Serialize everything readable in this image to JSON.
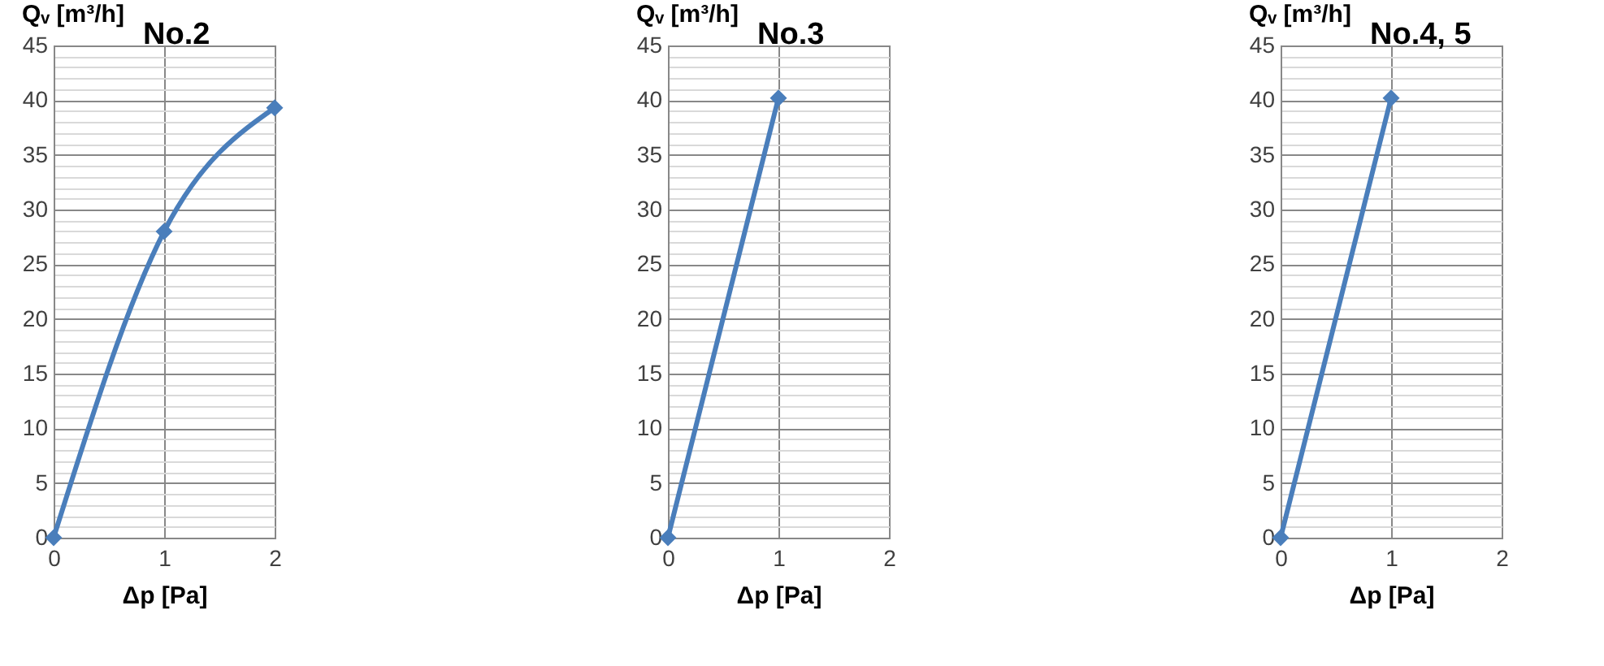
{
  "chart_data": [
    {
      "type": "line",
      "title": "No.2",
      "ylabel": "Qᵥ [m³/h]",
      "xlabel": "Δp [Pa]",
      "x": [
        0,
        1,
        2
      ],
      "series": [
        {
          "color": "#4a7ebb",
          "values": [
            0,
            28,
            39.3
          ]
        }
      ],
      "xlim": [
        0,
        2
      ],
      "xticks": [
        0,
        1,
        2
      ],
      "ylim": [
        0,
        45
      ],
      "yticks": [
        0,
        {
          "value": 1,
          "label": null
        },
        {
          "value": 2,
          "label": null
        },
        {
          "value": 3,
          "label": null
        },
        {
          "value": 4,
          "label": null
        },
        5,
        {
          "value": 6,
          "label": null
        },
        {
          "value": 7,
          "label": null
        },
        {
          "value": 8,
          "label": null
        },
        {
          "value": 9,
          "label": null
        },
        10,
        {
          "value": 11,
          "label": null
        },
        {
          "value": 12,
          "label": null
        },
        {
          "value": 13,
          "label": null
        },
        {
          "value": 14,
          "label": null
        },
        15,
        {
          "value": 16,
          "label": null
        },
        {
          "value": 17,
          "label": null
        },
        {
          "value": 18,
          "label": null
        },
        {
          "value": 19,
          "label": null
        },
        20,
        {
          "value": 21,
          "label": null
        },
        {
          "value": 22,
          "label": null
        },
        {
          "value": 23,
          "label": null
        },
        {
          "value": 24,
          "label": null
        },
        25,
        {
          "value": 26,
          "label": null
        },
        {
          "value": 27,
          "label": null
        },
        {
          "value": 28,
          "label": null
        },
        {
          "value": 29,
          "label": null
        },
        30,
        {
          "value": 31,
          "label": null
        },
        {
          "value": 32,
          "label": null
        },
        {
          "value": 33,
          "label": null
        },
        {
          "value": 34,
          "label": null
        },
        35,
        {
          "value": 36,
          "label": null
        },
        {
          "value": 37,
          "label": null
        },
        {
          "value": 38,
          "label": null
        },
        {
          "value": 39,
          "label": null
        },
        40,
        {
          "value": 41,
          "label": null
        },
        {
          "value": 42,
          "label": null
        },
        {
          "value": 43,
          "label": null
        },
        {
          "value": 44,
          "label": null
        },
        45
      ],
      "grid": true,
      "marker": "diamond",
      "line_style": "solid"
    },
    {
      "type": "line",
      "title": "No.3",
      "ylabel": "Qᵥ [m³/h]",
      "xlabel": "Δp [Pa]",
      "x": [
        0,
        1
      ],
      "series": [
        {
          "color": "#4a7ebb",
          "values": [
            0,
            40.2
          ]
        }
      ],
      "xlim": [
        0,
        2
      ],
      "xticks": [
        0,
        1,
        2
      ],
      "ylim": [
        0,
        45
      ],
      "yticks": [
        0,
        {
          "value": 1,
          "label": null
        },
        {
          "value": 2,
          "label": null
        },
        {
          "value": 3,
          "label": null
        },
        {
          "value": 4,
          "label": null
        },
        5,
        {
          "value": 6,
          "label": null
        },
        {
          "value": 7,
          "label": null
        },
        {
          "value": 8,
          "label": null
        },
        {
          "value": 9,
          "label": null
        },
        10,
        {
          "value": 11,
          "label": null
        },
        {
          "value": 12,
          "label": null
        },
        {
          "value": 13,
          "label": null
        },
        {
          "value": 14,
          "label": null
        },
        15,
        {
          "value": 16,
          "label": null
        },
        {
          "value": 17,
          "label": null
        },
        {
          "value": 18,
          "label": null
        },
        {
          "value": 19,
          "label": null
        },
        20,
        {
          "value": 21,
          "label": null
        },
        {
          "value": 22,
          "label": null
        },
        {
          "value": 23,
          "label": null
        },
        {
          "value": 24,
          "label": null
        },
        25,
        {
          "value": 26,
          "label": null
        },
        {
          "value": 27,
          "label": null
        },
        {
          "value": 28,
          "label": null
        },
        {
          "value": 29,
          "label": null
        },
        30,
        {
          "value": 31,
          "label": null
        },
        {
          "value": 32,
          "label": null
        },
        {
          "value": 33,
          "label": null
        },
        {
          "value": 34,
          "label": null
        },
        35,
        {
          "value": 36,
          "label": null
        },
        {
          "value": 37,
          "label": null
        },
        {
          "value": 38,
          "label": null
        },
        {
          "value": 39,
          "label": null
        },
        40,
        {
          "value": 41,
          "label": null
        },
        {
          "value": 42,
          "label": null
        },
        {
          "value": 43,
          "label": null
        },
        {
          "value": 44,
          "label": null
        },
        45
      ],
      "grid": true,
      "marker": "diamond",
      "line_style": "solid"
    },
    {
      "type": "line",
      "title": "No.4, 5",
      "ylabel": "Qᵥ [m³/h]",
      "xlabel": "Δp [Pa]",
      "x": [
        0,
        1
      ],
      "series": [
        {
          "color": "#4a7ebb",
          "values": [
            0,
            40.2
          ]
        }
      ],
      "xlim": [
        0,
        2
      ],
      "xticks": [
        0,
        1,
        2
      ],
      "ylim": [
        0,
        45
      ],
      "yticks": [
        0,
        {
          "value": 1,
          "label": null
        },
        {
          "value": 2,
          "label": null
        },
        {
          "value": 3,
          "label": null
        },
        {
          "value": 4,
          "label": null
        },
        5,
        {
          "value": 6,
          "label": null
        },
        {
          "value": 7,
          "label": null
        },
        {
          "value": 8,
          "label": null
        },
        {
          "value": 9,
          "label": null
        },
        10,
        {
          "value": 11,
          "label": null
        },
        {
          "value": 12,
          "label": null
        },
        {
          "value": 13,
          "label": null
        },
        {
          "value": 14,
          "label": null
        },
        15,
        {
          "value": 16,
          "label": null
        },
        {
          "value": 17,
          "label": null
        },
        {
          "value": 18,
          "label": null
        },
        {
          "value": 19,
          "label": null
        },
        20,
        {
          "value": 21,
          "label": null
        },
        {
          "value": 22,
          "label": null
        },
        {
          "value": 23,
          "label": null
        },
        {
          "value": 24,
          "label": null
        },
        25,
        {
          "value": 26,
          "label": null
        },
        {
          "value": 27,
          "label": null
        },
        {
          "value": 28,
          "label": null
        },
        {
          "value": 29,
          "label": null
        },
        30,
        {
          "value": 31,
          "label": null
        },
        {
          "value": 32,
          "label": null
        },
        {
          "value": 33,
          "label": null
        },
        {
          "value": 34,
          "label": null
        },
        35,
        {
          "value": 36,
          "label": null
        },
        {
          "value": 37,
          "label": null
        },
        {
          "value": 38,
          "label": null
        },
        {
          "value": 39,
          "label": null
        },
        40,
        {
          "value": 41,
          "label": null
        },
        {
          "value": 42,
          "label": null
        },
        {
          "value": 43,
          "label": null
        },
        {
          "value": 44,
          "label": null
        },
        45
      ],
      "grid": true,
      "marker": "diamond",
      "line_style": "solid"
    }
  ]
}
